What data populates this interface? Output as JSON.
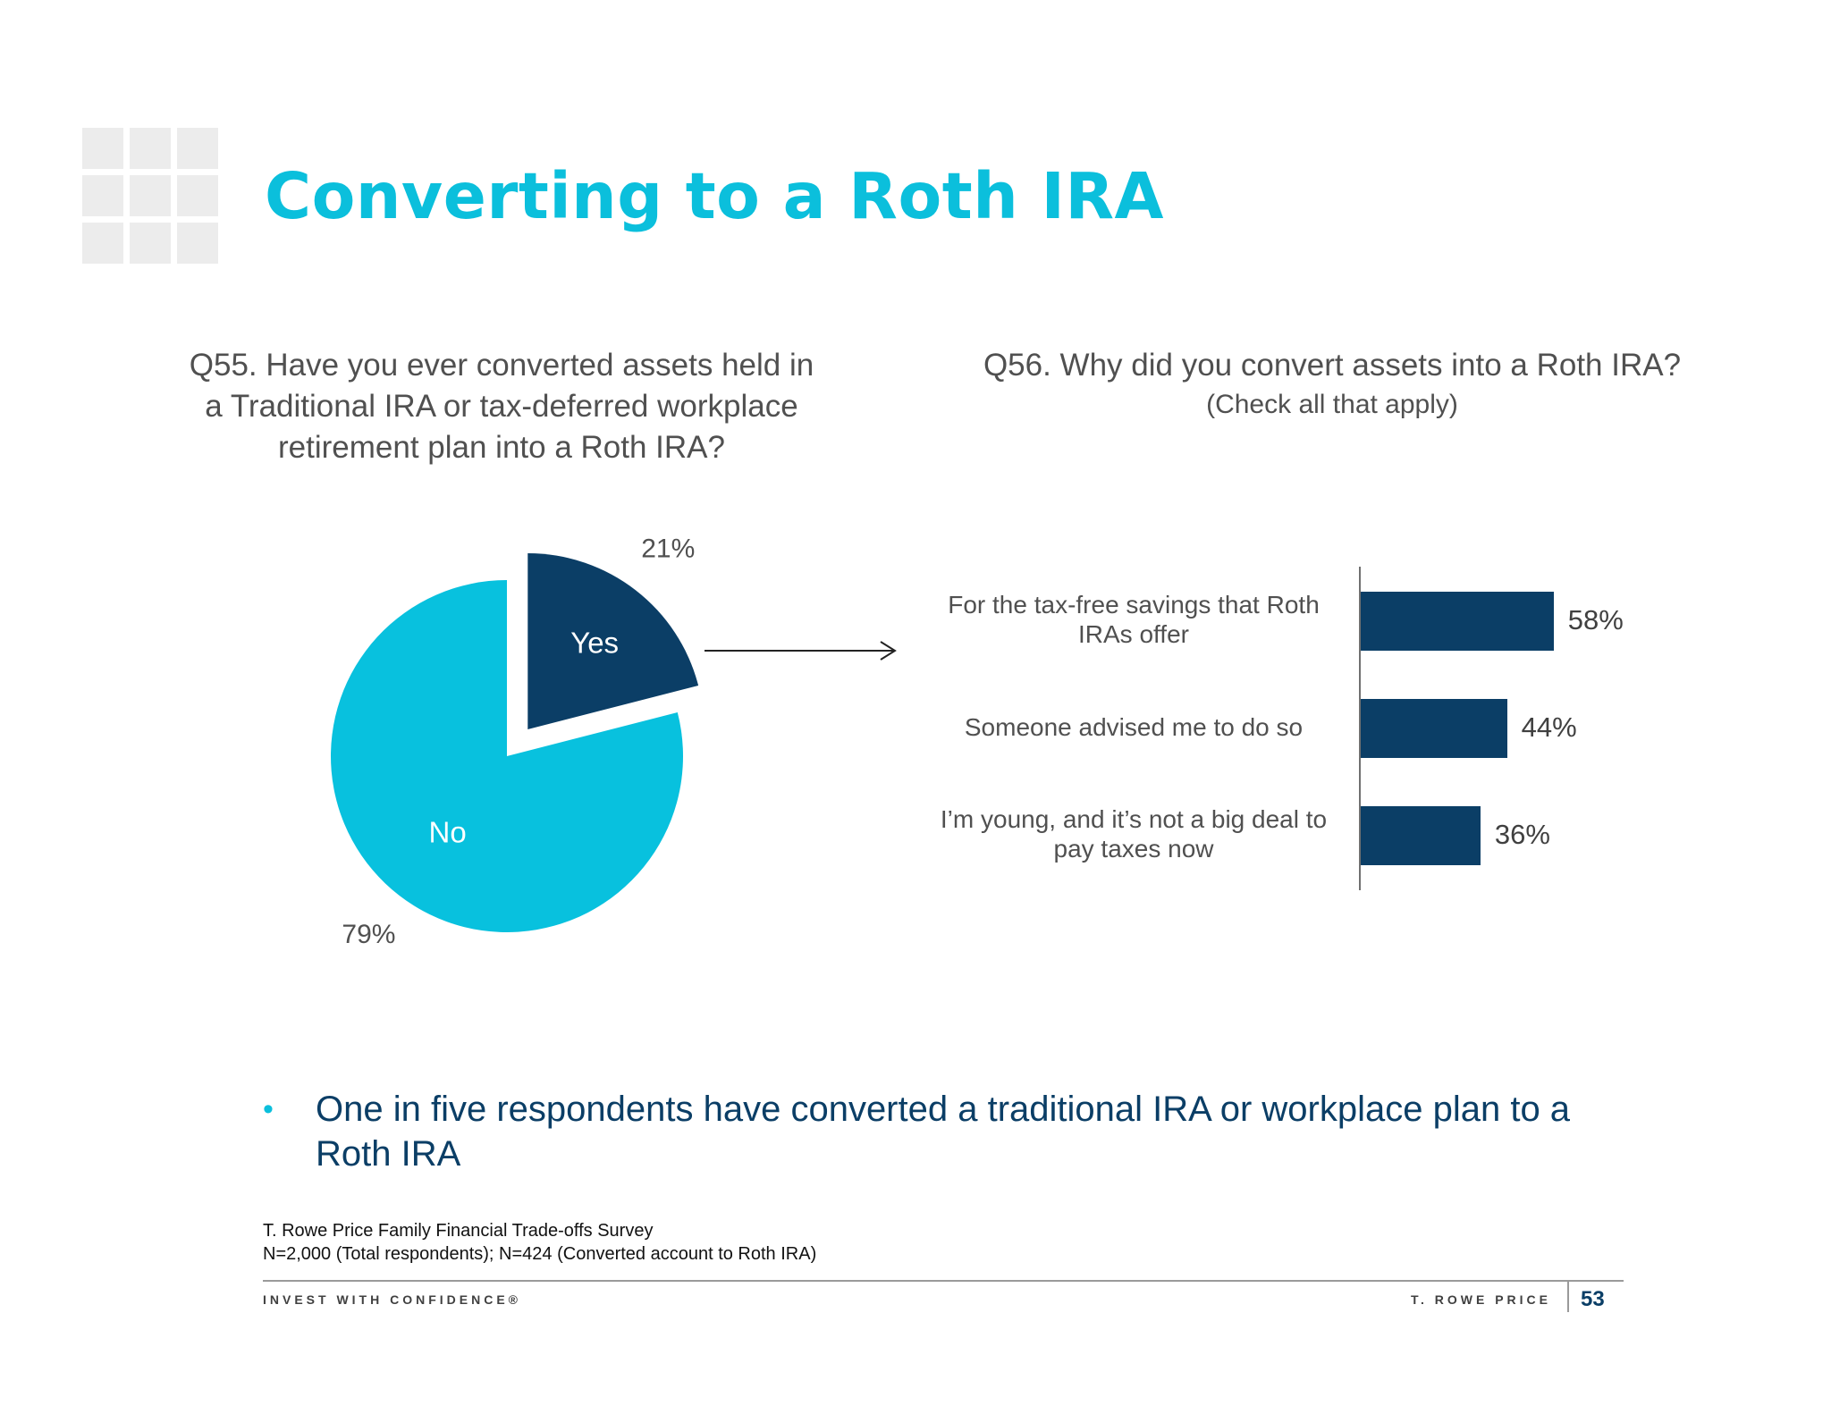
{
  "title": "Converting to a Roth IRA",
  "q55": {
    "lines": [
      "Q55. Have you ever converted assets held in",
      "a Traditional IRA or tax-deferred workplace",
      "retirement plan into a Roth IRA?"
    ]
  },
  "q56": {
    "title": "Q56. Why did you convert assets into a Roth IRA?",
    "subtitle": "(Check all that apply)"
  },
  "chart_data": [
    {
      "type": "pie",
      "slices": [
        {
          "label": "Yes",
          "value": 21,
          "value_label": "21%",
          "color": "#0b3e66",
          "exploded": true
        },
        {
          "label": "No",
          "value": 79,
          "value_label": "79%",
          "color": "#08c1de",
          "exploded": false
        }
      ]
    },
    {
      "type": "bar",
      "orientation": "horizontal",
      "categories": [
        [
          "For the tax-free savings that Roth",
          "IRAs offer"
        ],
        [
          "Someone advised me to do so"
        ],
        [
          "I’m young, and it’s not a big deal to",
          "pay taxes now"
        ]
      ],
      "values": [
        58,
        44,
        36
      ],
      "value_labels": [
        "58%",
        "44%",
        "36%"
      ],
      "color": "#0b3e66",
      "xlim": [
        0,
        100
      ]
    }
  ],
  "bullet": "One in five respondents have converted a traditional IRA or workplace plan to a Roth IRA",
  "source": {
    "line1": "T. Rowe Price Family Financial Trade-offs Survey",
    "line2": "N=2,000 (Total respondents); N=424 (Converted account to Roth IRA)"
  },
  "footer": {
    "left": "INVEST WITH CONFIDENCE®",
    "right": "T. ROWE PRICE",
    "page": "53"
  },
  "colors": {
    "accent": "#0bbfdc",
    "navy": "#0b3e66",
    "text": "#505050"
  }
}
